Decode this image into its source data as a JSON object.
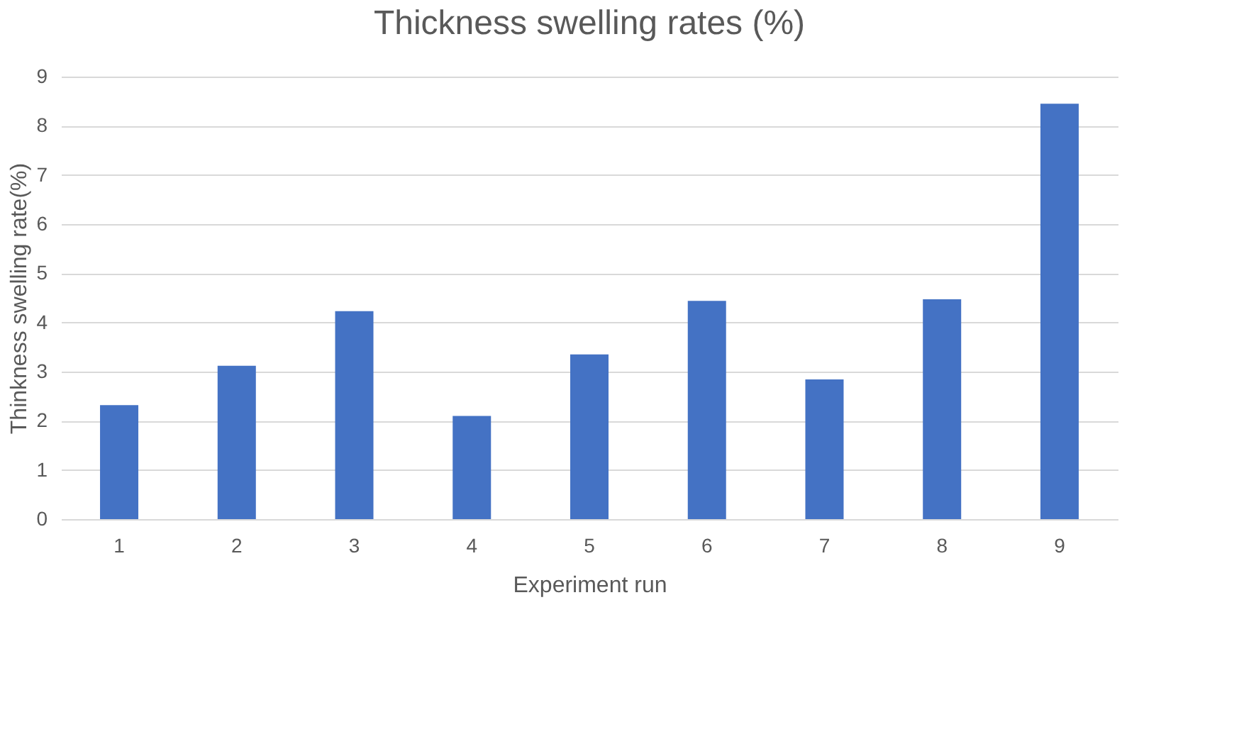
{
  "chart_data": {
    "type": "bar",
    "title": "Thickness swelling rates (%)",
    "xlabel": "Experiment run",
    "ylabel": "Thinkness swelling rate(%)",
    "categories": [
      "1",
      "2",
      "3",
      "4",
      "5",
      "6",
      "7",
      "8",
      "9"
    ],
    "values": [
      2.32,
      3.12,
      4.23,
      2.1,
      3.35,
      4.44,
      2.84,
      4.47,
      8.45
    ],
    "color": "#4472c4",
    "ylim": [
      0,
      9
    ],
    "yticks": [
      0,
      1,
      2,
      3,
      4,
      5,
      6,
      7,
      8,
      9
    ],
    "grid": "y"
  }
}
